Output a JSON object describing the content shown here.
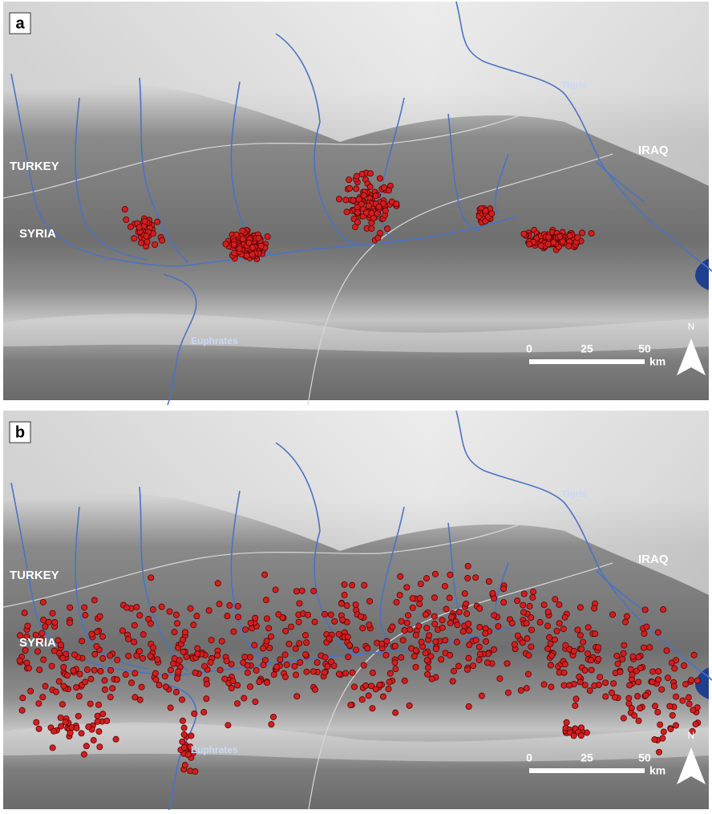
{
  "panels": [
    {
      "label": "a",
      "places": {
        "turkey": "TURKEY",
        "syria": "SYRIA",
        "iraq": "IRAQ",
        "tigris": "Tigris",
        "euphrates": "Euphrates"
      },
      "scale": {
        "ticks": [
          0,
          25,
          50
        ],
        "unit": "km"
      },
      "north": "N"
    },
    {
      "label": "b",
      "places": {
        "turkey": "TURKEY",
        "syria": "SYRIA",
        "iraq": "IRAQ",
        "tigris": "Tigris",
        "euphrates": "Euphrates"
      },
      "scale": {
        "ticks": [
          0,
          25,
          50
        ],
        "unit": "km"
      },
      "north": "N"
    }
  ]
}
